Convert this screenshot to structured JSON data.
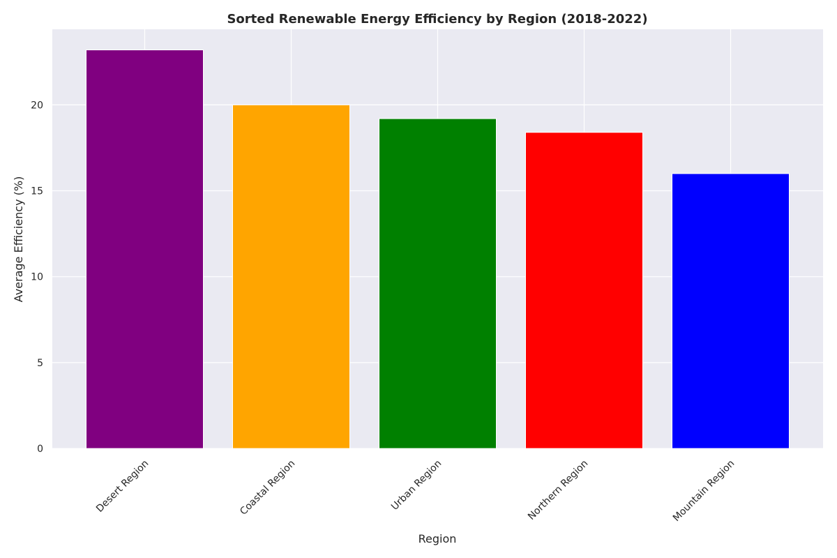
{
  "chart_data": {
    "type": "bar",
    "title": "Sorted Renewable Energy Efficiency by Region (2018-2022)",
    "xlabel": "Region",
    "ylabel": "Average Efficiency (%)",
    "categories": [
      "Desert Region",
      "Coastal Region",
      "Urban Region",
      "Northern Region",
      "Mountain Region"
    ],
    "values": [
      23.2,
      20.0,
      19.2,
      18.4,
      16.0
    ],
    "colors": [
      "#800080",
      "#ffa500",
      "#008000",
      "#ff0000",
      "#0000ff"
    ],
    "ylim": [
      0,
      24.4
    ],
    "yticks": [
      0,
      5,
      10,
      15,
      20
    ],
    "grid": true,
    "background": "#eaeaf2",
    "grid_color": "#ffffff"
  }
}
